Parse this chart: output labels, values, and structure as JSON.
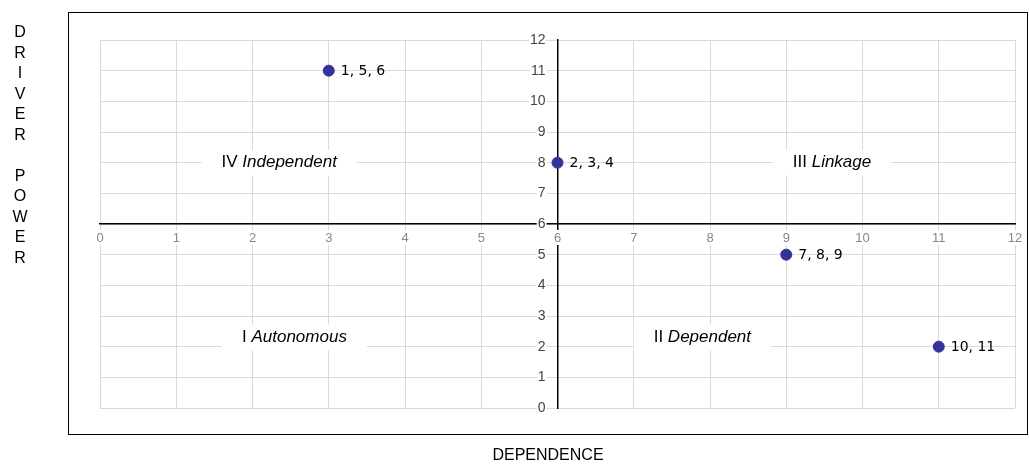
{
  "chart_data": {
    "type": "scatter",
    "xlabel": "DEPENDENCE",
    "ylabel": "DRIVER POWER",
    "x": [
      3,
      6,
      9,
      11
    ],
    "values": [
      11,
      8,
      5,
      2
    ],
    "color": "#333399",
    "marker": "circle",
    "xlim": [
      0,
      12
    ],
    "xticks": [
      0,
      1,
      2,
      3,
      4,
      5,
      6,
      7,
      8,
      9,
      10,
      11,
      12
    ],
    "ylim": [
      0,
      12
    ],
    "yticks": [
      0,
      1,
      2,
      3,
      4,
      5,
      6,
      7,
      8,
      9,
      10,
      11,
      12
    ],
    "grid": true,
    "legend": false,
    "annotations": [
      {
        "text": "1, 5, 6",
        "x": 3,
        "y": 11
      },
      {
        "text": "2, 3, 4",
        "x": 6,
        "y": 8
      },
      {
        "text": "7, 8, 9",
        "x": 9,
        "y": 5
      },
      {
        "text": "10, 11",
        "x": 11,
        "y": 2
      },
      "IV Independent",
      "III Linkage",
      "I Autonomous",
      "II Dependent"
    ]
  }
}
